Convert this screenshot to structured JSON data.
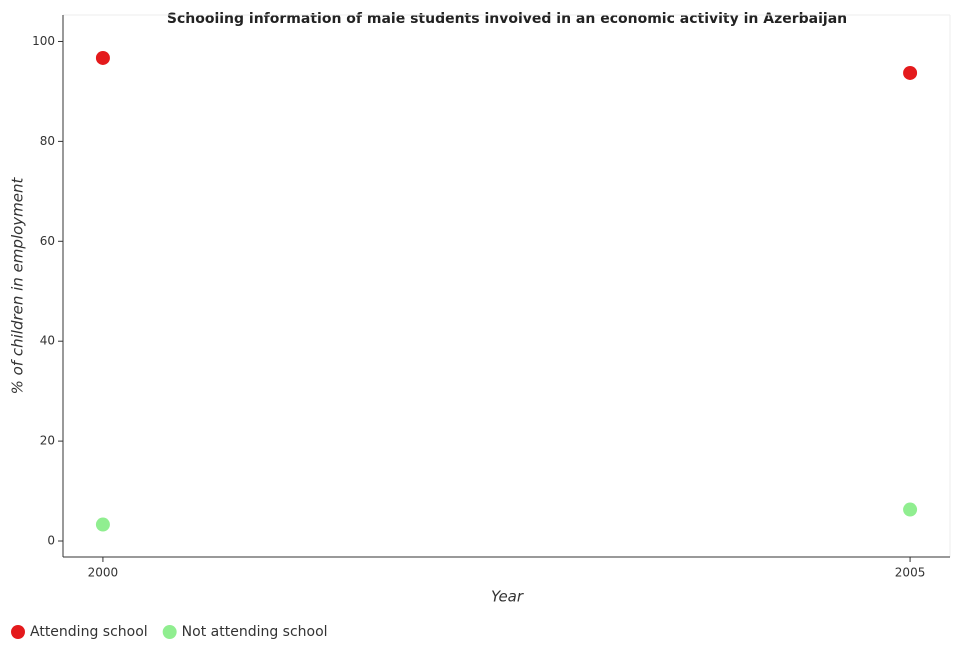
{
  "chart_data": {
    "type": "scatter",
    "title": "Schooling information of male students involved in an economic activity in Azerbaijan",
    "x_label": "Year",
    "y_label": "% of children in employment",
    "categories": [
      "2000",
      "2005"
    ],
    "series": [
      {
        "name": "Attending school",
        "color": "#e41a1c",
        "values": [
          96.7,
          93.7
        ]
      },
      {
        "name": "Not attending school",
        "color": "#90ee90",
        "values": [
          3.3,
          6.3
        ]
      }
    ],
    "ylim": [
      -3.2,
      105.3
    ],
    "yticks": [
      0,
      20,
      40,
      60,
      80,
      100
    ],
    "grid": false,
    "legend": "bottom-left"
  }
}
